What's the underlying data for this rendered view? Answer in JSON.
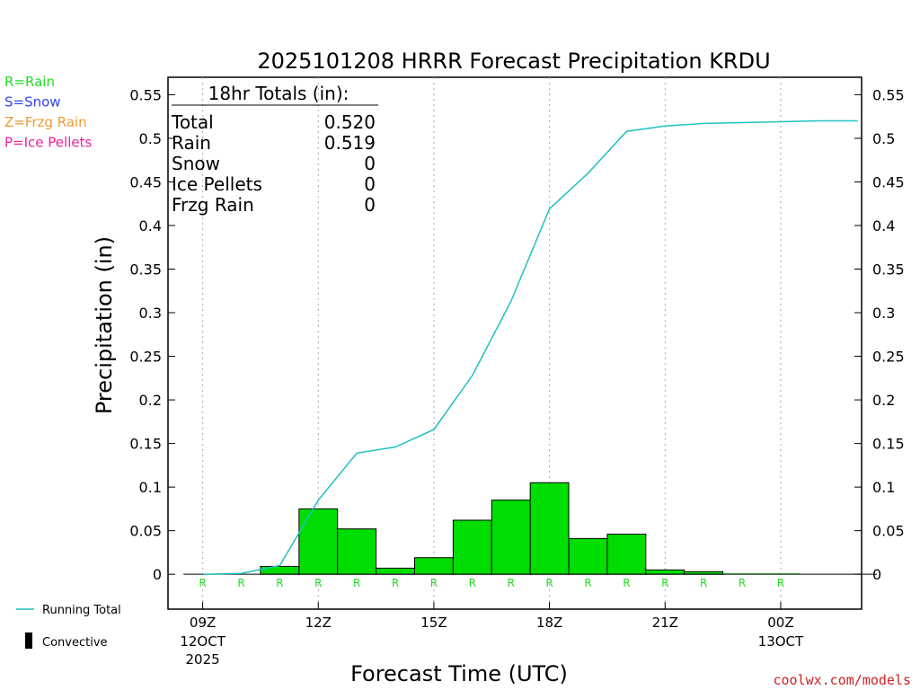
{
  "chart_data": {
    "type": "bar",
    "title": "2025101208 HRRR Forecast Precipitation KRDU",
    "xlabel": "Forecast Time (UTC)",
    "ylabel": "Precipitation (in)",
    "ylim": [
      -0.04,
      0.57
    ],
    "yticks": [
      "0.55",
      "0.5",
      "0.45",
      "0.4",
      "0.35",
      "0.3",
      "0.25",
      "0.2",
      "0.15",
      "0.1",
      "0.05",
      "0"
    ],
    "ytick_values": [
      0.55,
      0.5,
      0.45,
      0.4,
      0.35,
      0.3,
      0.25,
      0.2,
      0.15,
      0.1,
      0.05,
      0
    ],
    "xlim_hours": [
      8.1,
      26.1
    ],
    "xticks": [
      {
        "hour": 9,
        "label": "09Z",
        "date1": "12OCT",
        "date2": "2025"
      },
      {
        "hour": 12,
        "label": "12Z",
        "date1": "",
        "date2": ""
      },
      {
        "hour": 15,
        "label": "15Z",
        "date1": "",
        "date2": ""
      },
      {
        "hour": 18,
        "label": "18Z",
        "date1": "",
        "date2": ""
      },
      {
        "hour": 21,
        "label": "21Z",
        "date1": "",
        "date2": ""
      },
      {
        "hour": 24,
        "label": "00Z",
        "date1": "13OCT",
        "date2": ""
      }
    ],
    "hourly_bars": {
      "start_hours": [
        8.5,
        9.5,
        10.5,
        11.5,
        12.5,
        13.5,
        14.5,
        15.5,
        16.5,
        17.5,
        18.5,
        19.5,
        20.5,
        21.5,
        22.5,
        23.5,
        24.5,
        25.5
      ],
      "rain": [
        0.0,
        0.0,
        0.009,
        0.075,
        0.052,
        0.007,
        0.019,
        0.062,
        0.085,
        0.105,
        0.041,
        0.046,
        0.005,
        0.003,
        0.001,
        0.001,
        0.0,
        0.0
      ],
      "type_markers": [
        "R",
        "R",
        "R",
        "R",
        "R",
        "R",
        "R",
        "R",
        "R",
        "R",
        "R",
        "R",
        "R",
        "R",
        "R",
        "R",
        "",
        ""
      ]
    },
    "series": [
      {
        "name": "Running Total",
        "color": "#20c0c0",
        "x_hours": [
          9,
          10,
          11,
          12,
          13,
          14,
          15,
          16,
          17,
          18,
          19,
          20,
          21,
          22,
          23,
          24,
          25,
          26
        ],
        "values": [
          0.0,
          0.001,
          0.01,
          0.085,
          0.139,
          0.146,
          0.166,
          0.228,
          0.313,
          0.419,
          0.46,
          0.508,
          0.514,
          0.517,
          0.518,
          0.519,
          0.52,
          0.52
        ]
      }
    ],
    "totals_box": {
      "header": "18hr Totals (in):",
      "rows": [
        {
          "label": "Total",
          "value": "0.520"
        },
        {
          "label": "Rain",
          "value": "0.519"
        },
        {
          "label": "Snow",
          "value": "0"
        },
        {
          "label": "Ice Pellets",
          "value": "0"
        },
        {
          "label": "Frzg Rain",
          "value": "0"
        }
      ]
    },
    "type_legend": [
      {
        "label": "R=Rain",
        "color": "#22dd22"
      },
      {
        "label": "S=Snow",
        "color": "#3344ee"
      },
      {
        "label": "Z=Frzg Rain",
        "color": "#ee9933"
      },
      {
        "label": "P=Ice Pellets",
        "color": "#ee2299"
      }
    ],
    "bottom_legend": [
      {
        "label": "Running Total",
        "kind": "line",
        "color": "#20c0c0"
      },
      {
        "label": "Convective",
        "kind": "bar",
        "color": "#000000"
      }
    ],
    "credit": "coolwx.com/models",
    "bar_color": "#00dd00",
    "grid": "vertical-dotted",
    "legend_position": "left"
  }
}
